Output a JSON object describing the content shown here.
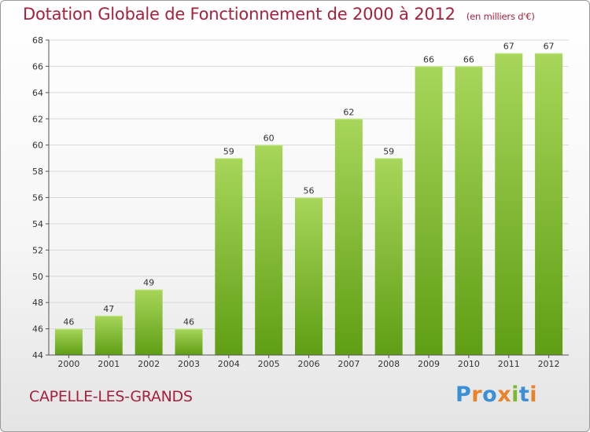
{
  "title": "Dotation Globale de Fonctionnement de 2000 à 2012",
  "subtitle": "(en milliers d'€)",
  "place": "CAPELLE-LES-GRANDS",
  "brand": {
    "text": "Proxiti",
    "letter_colors": [
      "#3a8fd6",
      "#e8832a",
      "#3a8fd6",
      "#e8832a",
      "#7ab82e",
      "#3a8fd6",
      "#e8832a"
    ]
  },
  "colors": {
    "title": "#a5213c",
    "bar_top": "#a7d65a",
    "bar_bottom": "#5f9e14",
    "grid": "#d8d8d8"
  },
  "chart_data": {
    "type": "bar",
    "categories": [
      "2000",
      "2001",
      "2002",
      "2003",
      "2004",
      "2005",
      "2006",
      "2007",
      "2008",
      "2009",
      "2010",
      "2011",
      "2012"
    ],
    "values": [
      46,
      47,
      49,
      46,
      59,
      60,
      56,
      62,
      59,
      66,
      66,
      67,
      67
    ],
    "ylim": [
      44,
      68
    ],
    "yticks": [
      44,
      46,
      48,
      50,
      52,
      54,
      56,
      58,
      60,
      62,
      64,
      66,
      68
    ],
    "grid": true
  }
}
